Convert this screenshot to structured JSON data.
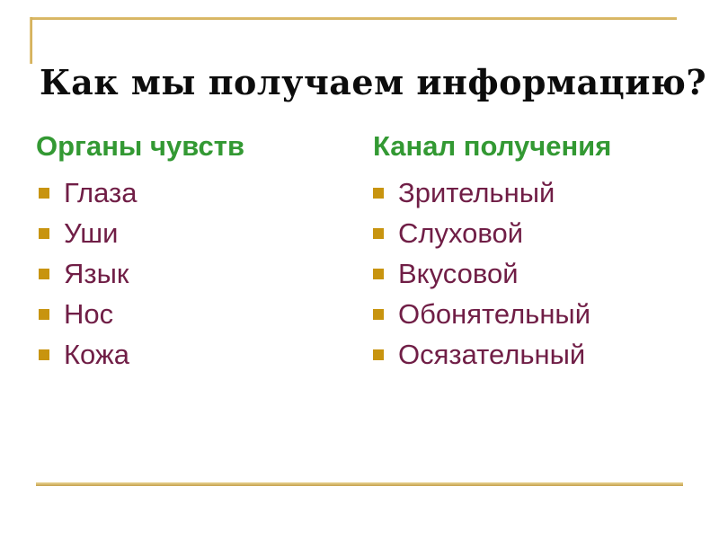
{
  "slide": {
    "title": "Как мы получаем информацию?",
    "columns": [
      {
        "header": "Органы чувств",
        "items": [
          "Глаза",
          "Уши",
          "Язык",
          "Нос",
          "Кожа"
        ]
      },
      {
        "header": "Канал получения",
        "items": [
          "Зрительный",
          "Слуховой",
          "Вкусовой",
          "Обонятельный",
          "Осязательный"
        ]
      }
    ],
    "colors": {
      "header_green": "#339933",
      "item_maroon": "#701e46",
      "bullet_gold": "#c8940f",
      "rule_gold": "#d4af5e",
      "title_black": "#0c0c0c",
      "background": "#ffffff"
    }
  }
}
